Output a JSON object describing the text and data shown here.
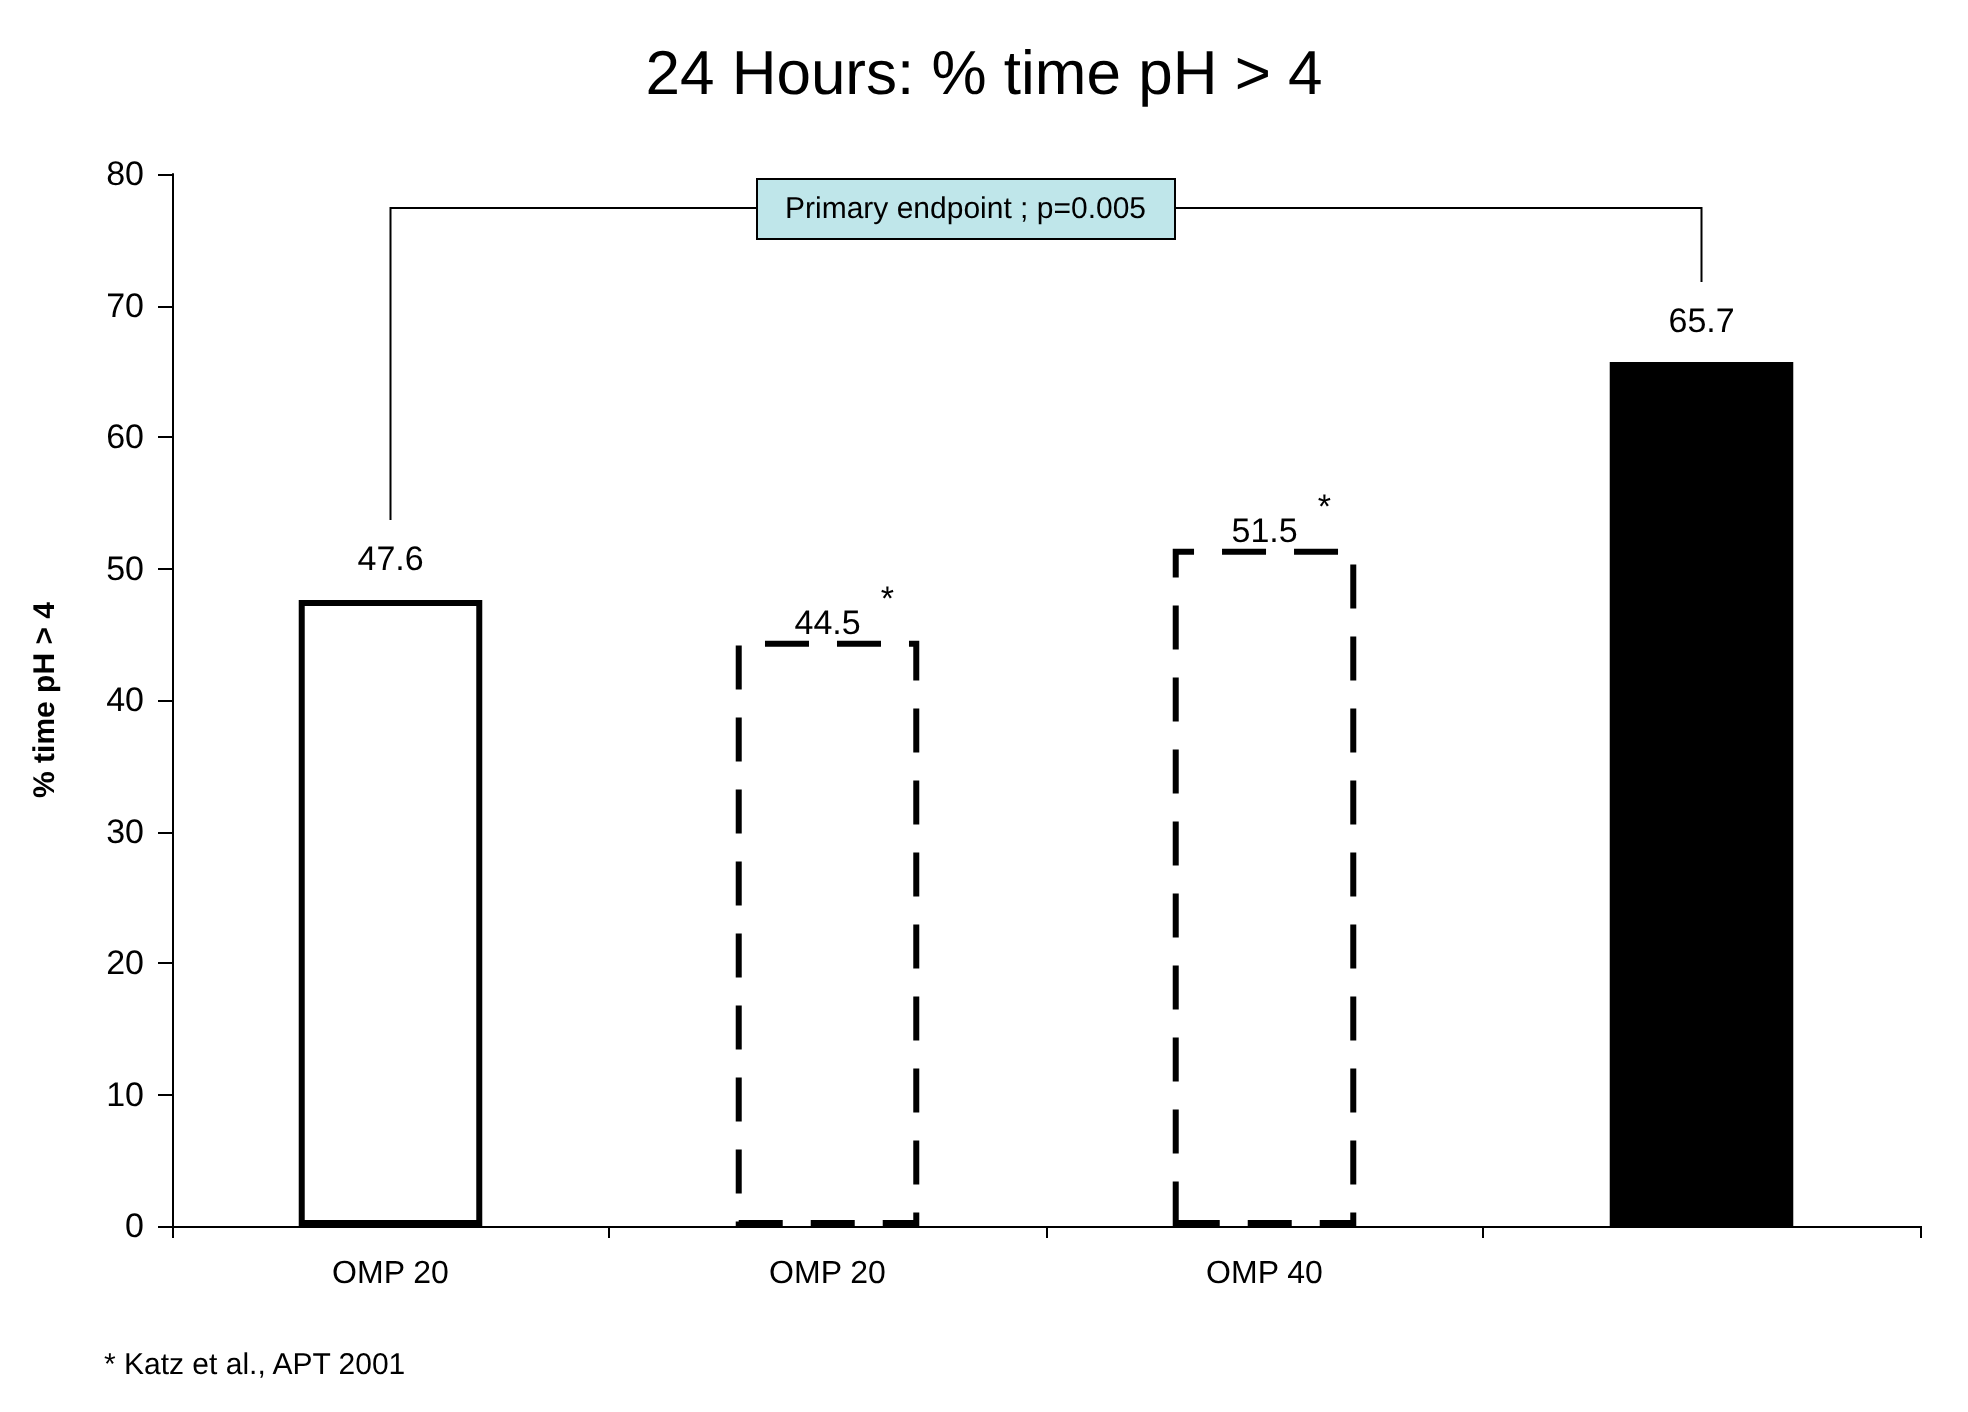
{
  "chart_data": {
    "type": "bar",
    "title": "24 Hours: % time pH > 4",
    "ylabel": "% time pH > 4",
    "categories": [
      "OMP 20",
      "OMP 20",
      "OMP 40",
      null
    ],
    "series": [
      {
        "values": [
          47.6,
          null,
          null,
          65.7
        ],
        "colors": [
          "#ffffff",
          null,
          null,
          "#000000"
        ],
        "color": "#000000",
        "line_style": "solid",
        "value_labels": [
          "47.6",
          null,
          null,
          "65.7"
        ]
      },
      {
        "values": [
          null,
          44.5,
          51.5,
          null
        ],
        "colors": [
          null,
          "#ffffff",
          "#ffffff",
          null
        ],
        "color": "#000000",
        "line_style": "dashed",
        "value_labels": [
          null,
          "44.5$^{*}$",
          "51.5$^{*}$",
          null
        ]
      }
    ],
    "ylim": [
      0,
      80
    ],
    "yticks": [
      0,
      10,
      20,
      30,
      40,
      50,
      60,
      70,
      80
    ],
    "grid": false,
    "annotations": [
      "Primary endpoint ; p=0.005",
      "* Katz et al., APT 2001"
    ]
  }
}
